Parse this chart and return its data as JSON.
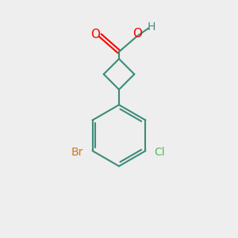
{
  "background_color": "#eeeeee",
  "bond_color": "#3d8c7a",
  "o_color": "#ff0000",
  "br_color": "#cc7722",
  "cl_color": "#55bb55",
  "h_color": "#3d8c7a",
  "line_width": 1.5,
  "figsize": [
    3.0,
    3.0
  ],
  "dpi": 100,
  "xlim": [
    0,
    10
  ],
  "ylim": [
    0,
    10
  ]
}
